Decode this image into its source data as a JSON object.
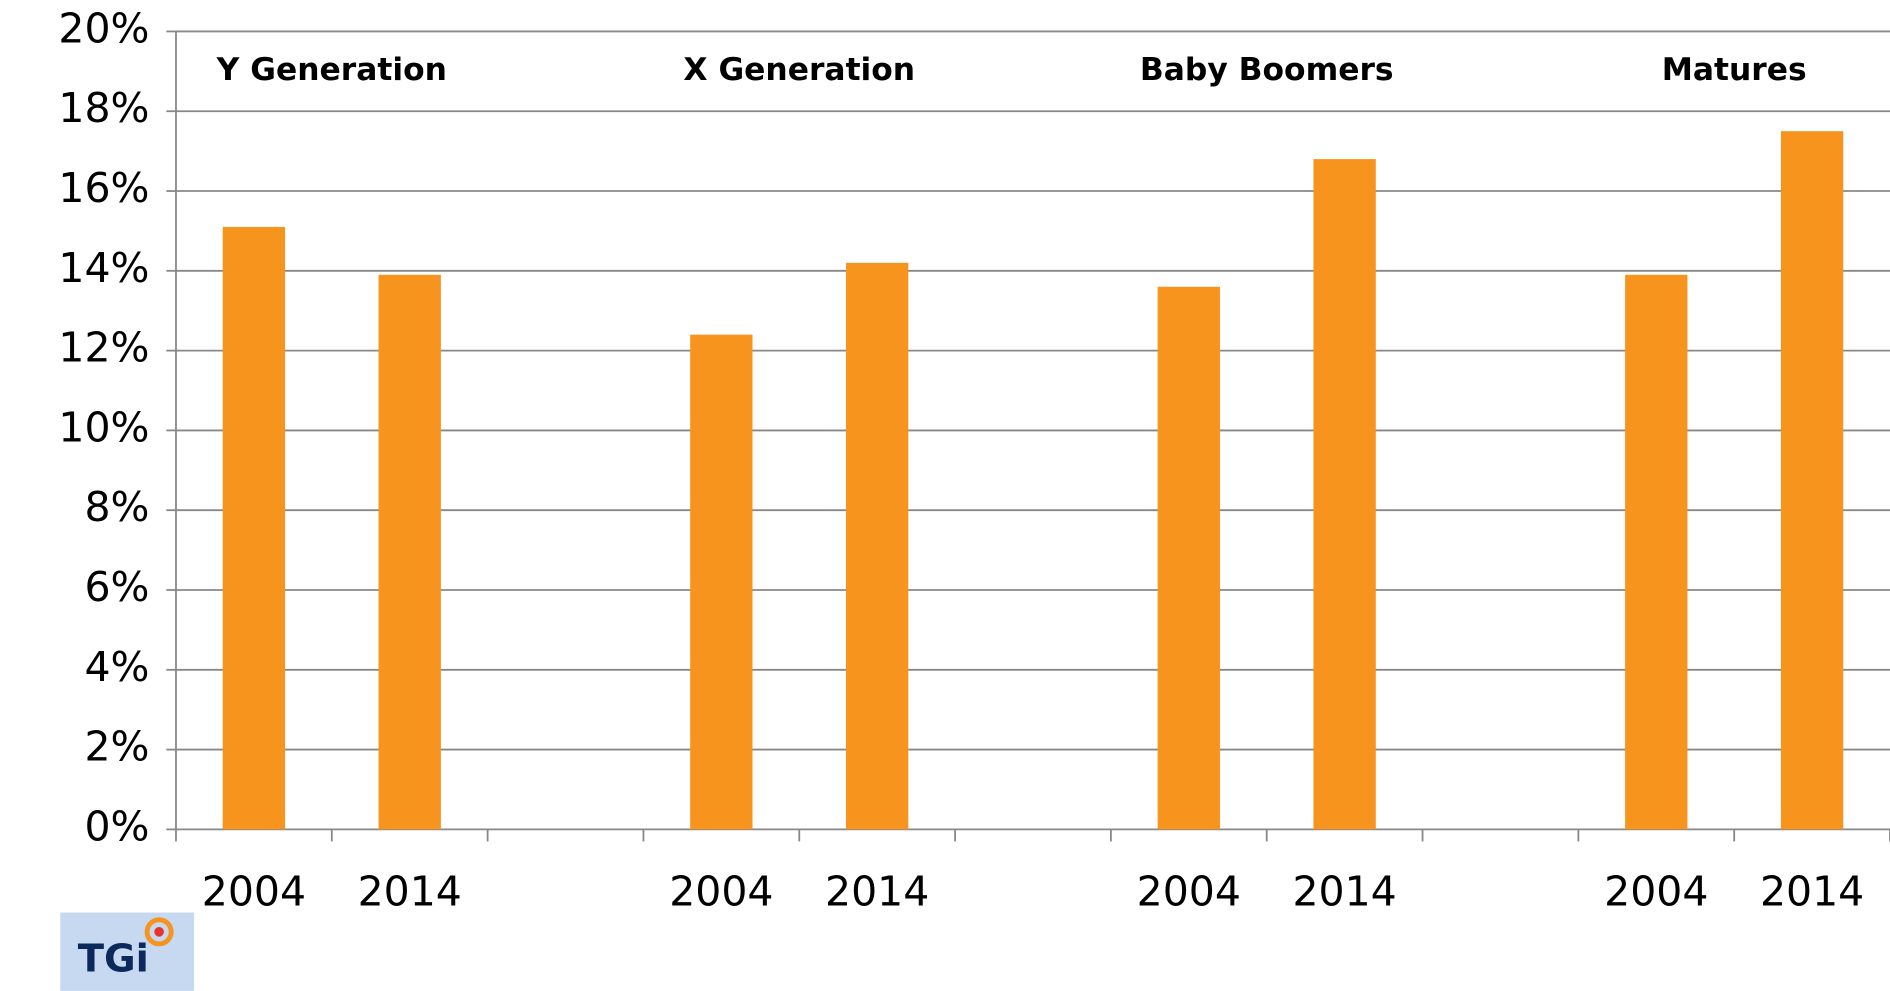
{
  "chart_data": {
    "type": "bar",
    "annotations": [
      "Y Generation",
      "X Generation",
      "Baby Boomers",
      "Matures"
    ],
    "categories": [
      "2004",
      "2014",
      null,
      "2004",
      "2014",
      null,
      "2004",
      "2014",
      null,
      "2004",
      "2014"
    ],
    "values": [
      15.1,
      13.9,
      null,
      12.4,
      14.2,
      null,
      13.6,
      16.8,
      null,
      13.9,
      17.5
    ],
    "color": "#f7941e",
    "ylim": [
      0,
      20
    ],
    "yticks": [
      {
        "value": 0,
        "label": "0%"
      },
      {
        "value": 2,
        "label": "2%"
      },
      {
        "value": 4,
        "label": "4%"
      },
      {
        "value": 6,
        "label": "6%"
      },
      {
        "value": 8,
        "label": "8%"
      },
      {
        "value": 10,
        "label": "10%"
      },
      {
        "value": 12,
        "label": "12%"
      },
      {
        "value": 14,
        "label": "14%"
      },
      {
        "value": 16,
        "label": "16%"
      },
      {
        "value": 18,
        "label": "18%"
      },
      {
        "value": 20,
        "label": "20%"
      }
    ],
    "grid": true
  },
  "logo": "TGi"
}
